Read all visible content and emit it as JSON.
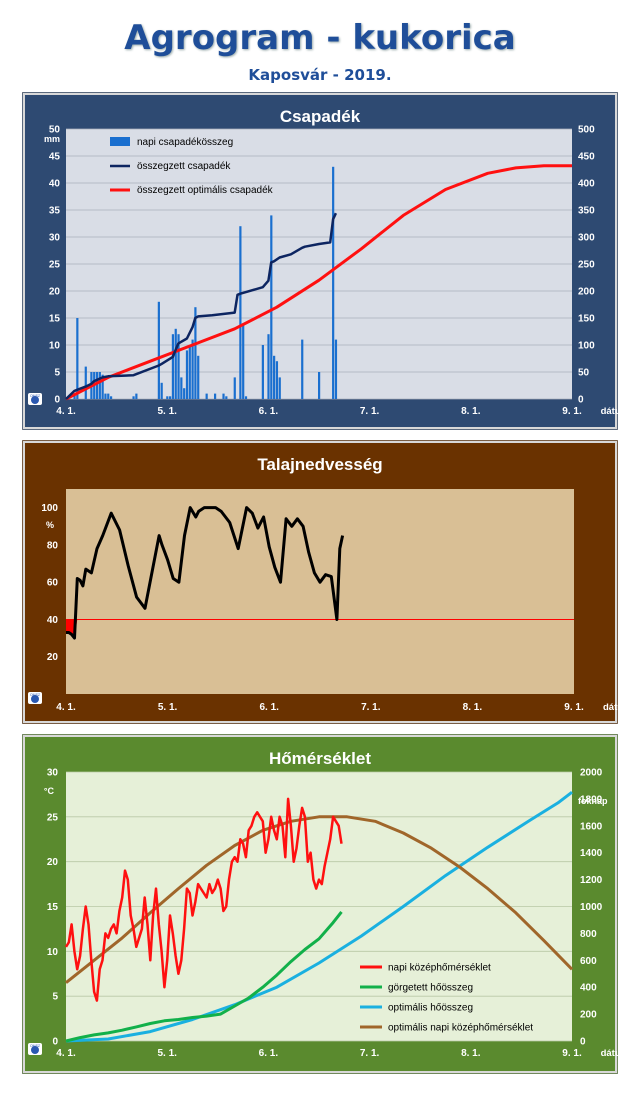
{
  "header": {
    "title": "Agrogram - kukorica",
    "subtitle": "Kaposvár  - 2019."
  },
  "colors": {
    "precip_bg": "#2e4a72",
    "precip_plot": "#d9dde6",
    "bar": "#1a6fcf",
    "cum_line": "#0d2561",
    "opt_line": "#ff1010",
    "soil_bg": "#6a3200",
    "soil_plot": "#d9bf95",
    "soil_line": "#000000",
    "soil_threshold": "#ff0000",
    "temp_bg": "#5a8a2e",
    "temp_plot": "#e6f0d8",
    "temp_line": "#ff1010",
    "gdd_line": "#12b04a",
    "opt_gdd_line": "#1ab0e0",
    "opt_temp_line": "#a0662a"
  },
  "x_ticks": [
    "4. 1.",
    "5. 1.",
    "6. 1.",
    "7. 1.",
    "8. 1.",
    "9. 1."
  ],
  "x_label": "dátum (hó.nap)",
  "logo_label": "OMSZ",
  "chart_data": [
    {
      "type": "bar",
      "title": "Csapadék",
      "ylabel": "mm",
      "ylim": [
        0,
        50
      ],
      "y_ticks": [
        0,
        5,
        10,
        15,
        20,
        25,
        30,
        35,
        40,
        45,
        50
      ],
      "y2lim": [
        0,
        500
      ],
      "y2_ticks": [
        0,
        50,
        100,
        150,
        200,
        250,
        300,
        350,
        400,
        450,
        500
      ],
      "xlabel": "dátum (hó.nap)",
      "x_domain_days": [
        0,
        180
      ],
      "legend": [
        "napi csapadékösszeg",
        "összegzett csapadék",
        "összegzett optimális csapadék"
      ],
      "legend_position": "top-left",
      "grid": true,
      "series": [
        {
          "name": "napi csapadékösszeg",
          "type": "bar",
          "x": [
            3,
            4,
            7,
            9,
            10,
            11,
            12,
            13,
            14,
            15,
            16,
            24,
            25,
            33,
            34,
            36,
            37,
            38,
            39,
            40,
            41,
            42,
            43,
            44,
            45,
            46,
            47,
            50,
            53,
            56,
            57,
            60,
            62,
            63,
            64,
            70,
            72,
            73,
            74,
            75,
            76,
            84,
            90,
            95,
            96
          ],
          "values": [
            1,
            15,
            6,
            5,
            5,
            5,
            5,
            4.5,
            1,
            1,
            0.5,
            0.5,
            1,
            18,
            3,
            0.5,
            0.5,
            12,
            13,
            12,
            4,
            2,
            9,
            10,
            11,
            17,
            8,
            1,
            1,
            1,
            0.5,
            4,
            32,
            14,
            0.5,
            10,
            12,
            34,
            8,
            7,
            4,
            11,
            5,
            43,
            11
          ]
        },
        {
          "name": "összegzett csapadék",
          "type": "line",
          "axis": "y2",
          "x": [
            0,
            2,
            3,
            4,
            7,
            9,
            10,
            13,
            15,
            24,
            33,
            34,
            38,
            39,
            40,
            43,
            45,
            46,
            47,
            52,
            60,
            61,
            62,
            70,
            72,
            73,
            74,
            76,
            80,
            84,
            85,
            90,
            94,
            95,
            96
          ],
          "values": [
            0,
            10,
            15,
            17,
            23,
            28,
            33,
            40,
            42,
            44,
            62,
            65,
            78,
            91,
            103,
            112,
            133,
            150,
            153,
            155,
            160,
            193,
            195,
            207,
            219,
            253,
            255,
            262,
            268,
            280,
            282,
            287,
            290,
            333,
            344
          ]
        },
        {
          "name": "összegzett optimális csapadék",
          "type": "line",
          "axis": "y2",
          "x": [
            0,
            15,
            30,
            45,
            60,
            75,
            90,
            105,
            120,
            135,
            150,
            160,
            170,
            180
          ],
          "values": [
            0,
            40,
            70,
            100,
            130,
            170,
            220,
            278,
            340,
            388,
            418,
            428,
            432,
            432
          ]
        }
      ]
    },
    {
      "type": "line",
      "title": "Talajnedvesség",
      "ylabel": "%",
      "ylim": [
        0,
        110
      ],
      "y_ticks": [
        20,
        40,
        60,
        80,
        100
      ],
      "threshold": 40,
      "xlabel": "dátum (hó.nap)",
      "x_domain_days": [
        0,
        180
      ],
      "grid": false,
      "series": [
        {
          "name": "talajnedvesség",
          "x": [
            0,
            1,
            2,
            3,
            4,
            5,
            6,
            7,
            9,
            11,
            13,
            16,
            19,
            22,
            25,
            28,
            33,
            34,
            36,
            38,
            40,
            42,
            44,
            46,
            47,
            49,
            50,
            51,
            53,
            55,
            58,
            61,
            64,
            66,
            68,
            70,
            72,
            74,
            76,
            78,
            80,
            82,
            84,
            86,
            88,
            90,
            92,
            94,
            96,
            97,
            98
          ],
          "values": [
            33,
            33,
            32,
            30,
            62,
            61,
            58,
            67,
            65,
            78,
            85,
            97,
            88,
            69,
            52,
            46,
            85,
            80,
            72,
            62,
            60,
            85,
            100,
            95,
            98,
            100,
            100,
            100,
            100,
            98,
            92,
            78,
            100,
            97,
            89,
            95,
            79,
            68,
            60,
            94,
            90,
            94,
            90,
            76,
            65,
            60,
            64,
            63,
            40,
            78,
            85
          ]
        }
      ]
    },
    {
      "type": "line",
      "title": "Hőmérséklet",
      "ylabel": "°C",
      "ylim": [
        0,
        30
      ],
      "y_ticks": [
        0,
        5,
        10,
        15,
        20,
        25,
        30
      ],
      "y2label": "foknap",
      "y2lim": [
        0,
        2000
      ],
      "y2_ticks": [
        0,
        200,
        400,
        600,
        800,
        1000,
        1200,
        1400,
        1600,
        1800,
        2000
      ],
      "xlabel": "dátum (hó.nap)",
      "x_domain_days": [
        0,
        180
      ],
      "legend": [
        "napi középhőmérséklet",
        "görgetett hőösszeg",
        "optimális hőösszeg",
        "optimális napi középhőmérséklet"
      ],
      "legend_position": "bottom-right",
      "grid": true,
      "series": [
        {
          "name": "napi középhőmérséklet",
          "x": [
            0,
            1,
            2,
            3,
            4,
            5,
            6,
            7,
            8,
            9,
            10,
            11,
            12,
            13,
            14,
            15,
            16,
            17,
            18,
            19,
            20,
            21,
            22,
            23,
            24,
            25,
            26,
            27,
            28,
            29,
            30,
            31,
            32,
            33,
            34,
            35,
            36,
            37,
            38,
            39,
            40,
            41,
            42,
            43,
            44,
            45,
            46,
            47,
            48,
            49,
            50,
            51,
            52,
            53,
            54,
            55,
            56,
            57,
            58,
            59,
            60,
            61,
            62,
            63,
            64,
            65,
            66,
            67,
            68,
            69,
            70,
            71,
            72,
            73,
            74,
            75,
            76,
            77,
            78,
            79,
            80,
            81,
            82,
            83,
            84,
            85,
            86,
            87,
            88,
            89,
            90,
            91,
            92,
            93,
            94,
            95,
            96,
            97,
            98
          ],
          "values": [
            10.5,
            11,
            13,
            10,
            8,
            9.5,
            12.5,
            15,
            13,
            9,
            5.5,
            4.5,
            8,
            9,
            12,
            11.5,
            12.5,
            13,
            12,
            14.5,
            16,
            19,
            18,
            14,
            12.5,
            10.5,
            11.5,
            12.5,
            16,
            13,
            9,
            14,
            17,
            13,
            10,
            6,
            9,
            14,
            12,
            9.5,
            7.5,
            9,
            12.5,
            17,
            16.5,
            14,
            15.5,
            17.5,
            17,
            16.5,
            16,
            17.5,
            16.5,
            17,
            18,
            17,
            14.5,
            15,
            18,
            20,
            20.5,
            20,
            22.5,
            22,
            20.5,
            23.5,
            24,
            25,
            25.5,
            25,
            24.5,
            21,
            22.5,
            25,
            23.5,
            22.5,
            25,
            24,
            20.5,
            27,
            24,
            20,
            21.5,
            24,
            26,
            25,
            20,
            21,
            18,
            17,
            18,
            17.5,
            19.5,
            21,
            22.5,
            25,
            24.5,
            24,
            22
          ]
        },
        {
          "name": "görgetett hőösszeg",
          "axis": "y2",
          "x": [
            0,
            5,
            10,
            15,
            20,
            25,
            30,
            35,
            40,
            45,
            50,
            55,
            60,
            65,
            70,
            75,
            80,
            85,
            90,
            95,
            98
          ],
          "values": [
            0,
            25,
            45,
            60,
            80,
            105,
            130,
            150,
            160,
            175,
            185,
            200,
            260,
            320,
            400,
            490,
            590,
            680,
            760,
            880,
            960
          ]
        },
        {
          "name": "optimális hőösszeg",
          "axis": "y2",
          "x": [
            0,
            15,
            30,
            45,
            60,
            75,
            90,
            105,
            120,
            135,
            150,
            165,
            175,
            180
          ],
          "values": [
            0,
            15,
            70,
            160,
            270,
            400,
            580,
            780,
            1000,
            1230,
            1440,
            1640,
            1770,
            1850
          ]
        },
        {
          "name": "optimális napi középhőmérséklet",
          "x": [
            0,
            10,
            20,
            30,
            40,
            50,
            60,
            70,
            80,
            90,
            100,
            110,
            120,
            130,
            140,
            150,
            160,
            170,
            180
          ],
          "values": [
            6.5,
            9,
            11.5,
            14.3,
            17,
            19.6,
            21.8,
            23.5,
            24.5,
            25,
            25,
            24.5,
            23.2,
            21.5,
            19.4,
            17,
            14.3,
            11.2,
            8
          ]
        }
      ]
    }
  ]
}
